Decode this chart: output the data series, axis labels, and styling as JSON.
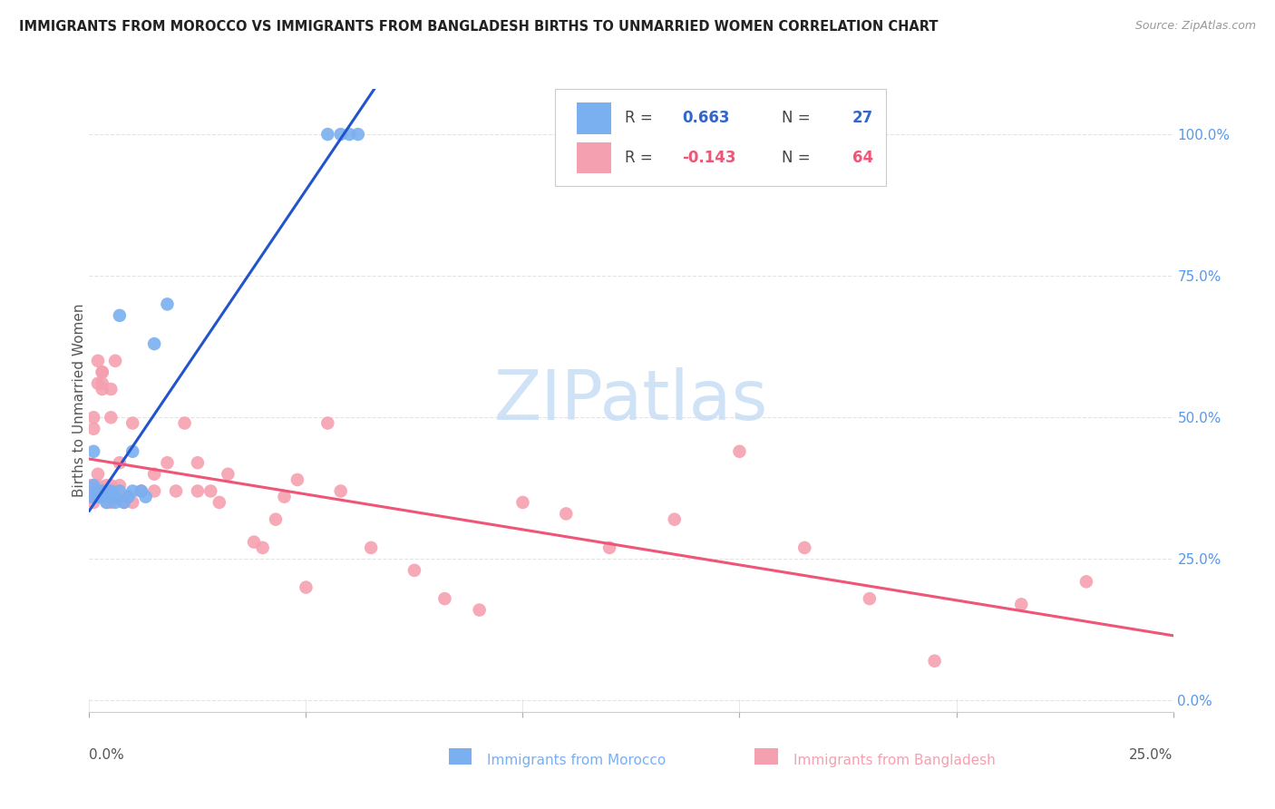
{
  "title": "IMMIGRANTS FROM MOROCCO VS IMMIGRANTS FROM BANGLADESH BIRTHS TO UNMARRIED WOMEN CORRELATION CHART",
  "source": "Source: ZipAtlas.com",
  "ylabel": "Births to Unmarried Women",
  "morocco_color": "#7aaff0",
  "bangladesh_color": "#f5a0b0",
  "morocco_line_color": "#2255cc",
  "bangladesh_line_color": "#ee5577",
  "morocco_R": 0.663,
  "morocco_N": 27,
  "bangladesh_R": -0.143,
  "bangladesh_N": 64,
  "watermark": "ZIPatlas",
  "right_ytick_vals": [
    0.0,
    0.25,
    0.5,
    0.75,
    1.0
  ],
  "right_ytick_labels": [
    "0.0%",
    "25.0%",
    "50.0%",
    "75.0%",
    "100.0%"
  ],
  "xlim": [
    0.0,
    0.25
  ],
  "ylim": [
    -0.02,
    1.08
  ],
  "morocco_x": [
    0.0005,
    0.001,
    0.001,
    0.002,
    0.002,
    0.003,
    0.003,
    0.004,
    0.004,
    0.005,
    0.005,
    0.006,
    0.006,
    0.007,
    0.007,
    0.008,
    0.009,
    0.01,
    0.01,
    0.012,
    0.013,
    0.015,
    0.018,
    0.055,
    0.058,
    0.06,
    0.062
  ],
  "morocco_y": [
    0.36,
    0.38,
    0.44,
    0.36,
    0.37,
    0.36,
    0.37,
    0.35,
    0.37,
    0.36,
    0.37,
    0.35,
    0.36,
    0.37,
    0.68,
    0.35,
    0.36,
    0.37,
    0.44,
    0.37,
    0.36,
    0.63,
    0.7,
    1.0,
    1.0,
    1.0,
    1.0
  ],
  "bangladesh_x": [
    0.0003,
    0.0005,
    0.001,
    0.001,
    0.001,
    0.001,
    0.002,
    0.002,
    0.002,
    0.003,
    0.003,
    0.003,
    0.004,
    0.004,
    0.005,
    0.005,
    0.005,
    0.006,
    0.007,
    0.007,
    0.008,
    0.009,
    0.01,
    0.01,
    0.012,
    0.015,
    0.015,
    0.018,
    0.02,
    0.022,
    0.025,
    0.025,
    0.028,
    0.03,
    0.032,
    0.038,
    0.04,
    0.043,
    0.045,
    0.048,
    0.05,
    0.055,
    0.058,
    0.065,
    0.075,
    0.082,
    0.09,
    0.1,
    0.11,
    0.12,
    0.135,
    0.15,
    0.165,
    0.18,
    0.195,
    0.215,
    0.23,
    0.0008,
    0.001,
    0.002,
    0.002,
    0.003,
    0.003,
    0.005
  ],
  "bangladesh_y": [
    0.36,
    0.38,
    0.35,
    0.37,
    0.48,
    0.5,
    0.36,
    0.56,
    0.6,
    0.36,
    0.55,
    0.58,
    0.35,
    0.38,
    0.35,
    0.38,
    0.55,
    0.6,
    0.38,
    0.42,
    0.35,
    0.36,
    0.35,
    0.49,
    0.37,
    0.37,
    0.4,
    0.42,
    0.37,
    0.49,
    0.37,
    0.42,
    0.37,
    0.35,
    0.4,
    0.28,
    0.27,
    0.32,
    0.36,
    0.39,
    0.2,
    0.49,
    0.37,
    0.27,
    0.23,
    0.18,
    0.16,
    0.35,
    0.33,
    0.27,
    0.32,
    0.44,
    0.27,
    0.18,
    0.07,
    0.17,
    0.21,
    0.36,
    0.36,
    0.38,
    0.4,
    0.56,
    0.58,
    0.5
  ],
  "grid_color": "#dddddd",
  "grid_linestyle": "--",
  "xtick_positions": [
    0.0,
    0.05,
    0.1,
    0.15,
    0.2,
    0.25
  ]
}
